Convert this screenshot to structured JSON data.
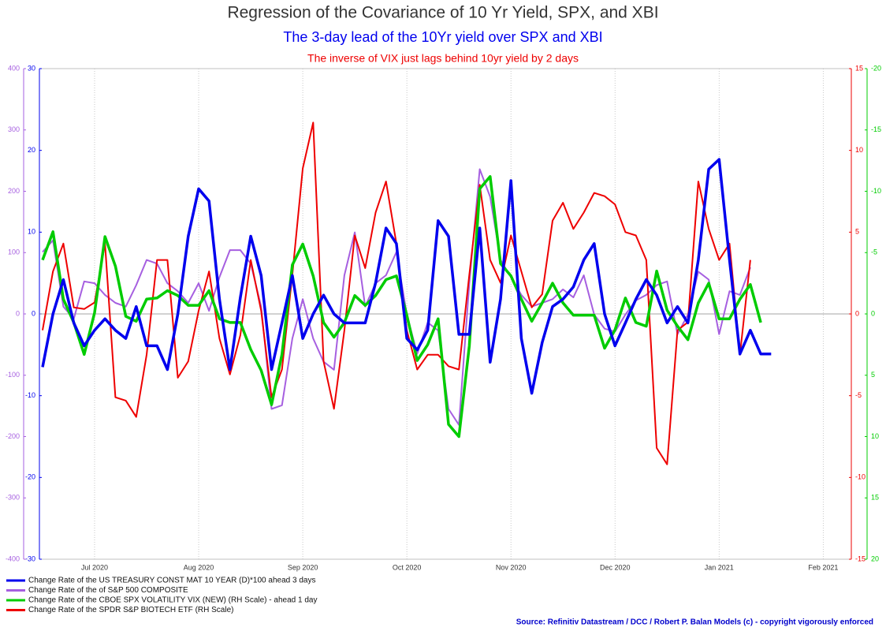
{
  "chart_data": {
    "type": "line",
    "title": "Regression of the Covariance of 10 Yr Yield, SPX, and XBI",
    "subtitle": "The 3-day lead of the 10Yr yield over SPX and XBI",
    "note": "The inverse of VIX just lags behind 10yr yield by 2 days",
    "source": "Source: Refinitiv Datastream / DCC / Robert P. Balan Models (c) - copyright vigorously enforced",
    "legend": "bottom-left",
    "grid": true,
    "categories": [
      null,
      null,
      null,
      null,
      null,
      "Jul 2020",
      null,
      null,
      null,
      null,
      null,
      null,
      null,
      null,
      null,
      "Aug 2020",
      null,
      null,
      null,
      null,
      null,
      null,
      null,
      null,
      null,
      "Sep 2020",
      null,
      null,
      null,
      null,
      null,
      null,
      null,
      null,
      null,
      "Oct 2020",
      null,
      null,
      null,
      null,
      null,
      null,
      null,
      null,
      null,
      "Nov 2020",
      null,
      null,
      null,
      null,
      null,
      null,
      null,
      null,
      null,
      "Dec 2020",
      null,
      null,
      null,
      null,
      null,
      null,
      null,
      null,
      null,
      "Jan 2021",
      null,
      null,
      null,
      null,
      null,
      null,
      null,
      null,
      null,
      "Feb 2021"
    ],
    "ylim": [
      -30,
      30
    ],
    "yticks": [
      -30,
      -20,
      -10,
      0,
      10,
      20,
      30
    ],
    "y2lim": [
      -400,
      400
    ],
    "y2ticks": [
      -400,
      -300,
      -200,
      -100,
      0,
      100,
      200,
      300,
      400
    ],
    "y3lim": [
      -15,
      15
    ],
    "y3ticks": [
      -15,
      -10,
      -5,
      0,
      5,
      10,
      15
    ],
    "y4lim": [
      20,
      -20
    ],
    "y4ticks": [
      -20,
      -15,
      -10,
      -5,
      0,
      5,
      10,
      15,
      20
    ],
    "series": [
      {
        "name": "Change Rate of the US TREASURY CONST MAT 10 YEAR (D)*100 ahead 3 days",
        "color": "#0000ee",
        "axis": "y",
        "values": [
          -6.5,
          0,
          4.2,
          -1.1,
          -3.9,
          -2,
          -0.6,
          -2,
          -3,
          0.9,
          -3.9,
          -3.9,
          -6.8,
          0,
          9.5,
          15.3,
          13.8,
          1.8,
          -6.8,
          2,
          9.5,
          4.7,
          -6.8,
          -1.1,
          4.7,
          -3,
          0,
          2.3,
          0,
          -1.1,
          -1.1,
          -1.1,
          3.8,
          10.5,
          8.6,
          -3,
          -4.4,
          -2,
          11.4,
          9.5,
          -2.5,
          -2.5,
          10.5,
          -5.9,
          1.8,
          16.3,
          -3,
          -9.7,
          -3.5,
          0.9,
          1.8,
          3.3,
          6.6,
          8.6,
          0,
          -3.9,
          -1.1,
          1.8,
          4.2,
          2.3,
          -1.1,
          0.9,
          -1.1,
          6.6,
          17.7,
          18.9,
          6.6,
          -4.9,
          -2,
          -4.9,
          -4.9,
          null,
          null,
          null,
          null,
          null
        ]
      },
      {
        "name": "Change Rate of the of S&P 500 COMPOSITE",
        "color": "#a65fe0",
        "axis": "y2",
        "values": [
          101,
          120,
          12,
          -8,
          53,
          50,
          31,
          18,
          12,
          47,
          88,
          82,
          50,
          37,
          18,
          50,
          5,
          60,
          104,
          104,
          82,
          12,
          -155,
          -149,
          -40,
          24,
          -40,
          -78,
          -91,
          63,
          133,
          12,
          50,
          63,
          101,
          -1,
          -65,
          -14,
          -27,
          -155,
          -181,
          50,
          236,
          191,
          88,
          60,
          31,
          12,
          18,
          24,
          40,
          27,
          63,
          -1,
          -24,
          -29,
          -1,
          22,
          31,
          47,
          53,
          -33,
          -1,
          69,
          56,
          -33,
          37,
          31,
          76,
          null,
          null,
          null,
          null,
          null,
          null,
          null
        ]
      },
      {
        "name": "Change Rate of the CBOE SPX VOLATILITY VIX (NEW) (RH Scale) - ahead 1 day",
        "color": "#00cc00",
        "axis": "y4",
        "values": [
          -4.4,
          -6.7,
          -1.2,
          0.7,
          3.3,
          -0.1,
          -6.3,
          -3.9,
          0.2,
          0.6,
          -1.2,
          -1.3,
          -1.9,
          -1.5,
          -0.7,
          -0.7,
          -1.9,
          0.4,
          0.7,
          0.7,
          2.9,
          4.6,
          7.4,
          3.3,
          -4,
          -5.7,
          -3.1,
          0.7,
          1.9,
          0.7,
          -1.5,
          -0.7,
          -1.5,
          -2.8,
          -3.1,
          0.1,
          3.8,
          2.5,
          0.4,
          9,
          10,
          2.6,
          -10.2,
          -11.2,
          -4.1,
          -3.1,
          -1.2,
          0.6,
          -0.9,
          -2.5,
          -0.9,
          0.1,
          0.1,
          0.1,
          2.8,
          1.3,
          -1.3,
          0.7,
          1,
          -3.5,
          -0.3,
          1,
          2.1,
          -0.9,
          -2.5,
          0.4,
          0.4,
          -1.2,
          -2.4,
          0.7,
          null,
          null,
          null,
          null,
          null,
          null
        ]
      },
      {
        "name": "Change Rate of the SPDR S&P BIOTECH ETF (RH Scale)",
        "color": "#ee0000",
        "axis": "y3",
        "values": [
          -1,
          2.6,
          4.3,
          0.4,
          0.3,
          0.7,
          4.3,
          -5.1,
          -5.3,
          -6.3,
          -2.5,
          3.3,
          3.3,
          -3.9,
          -2.9,
          0.2,
          2.6,
          -1.5,
          -3.7,
          -1.3,
          3.3,
          0.2,
          -5.1,
          -3.4,
          2.4,
          8.9,
          11.7,
          -2.9,
          -5.8,
          -1,
          4.8,
          2.8,
          6.2,
          8.1,
          4.3,
          -1,
          -3.4,
          -2.5,
          -2.5,
          -3.2,
          -3.4,
          2.4,
          7.9,
          3.3,
          1.9,
          4.8,
          2.6,
          0.4,
          1.2,
          5.7,
          6.8,
          5.2,
          6.2,
          7.4,
          7.2,
          6.7,
          5,
          4.8,
          3.3,
          -8.2,
          -9.2,
          -1,
          -0.5,
          8.1,
          5.2,
          3.3,
          4.3,
          -2.5,
          3.3,
          null,
          null,
          null,
          null,
          null,
          null,
          null
        ]
      }
    ]
  }
}
